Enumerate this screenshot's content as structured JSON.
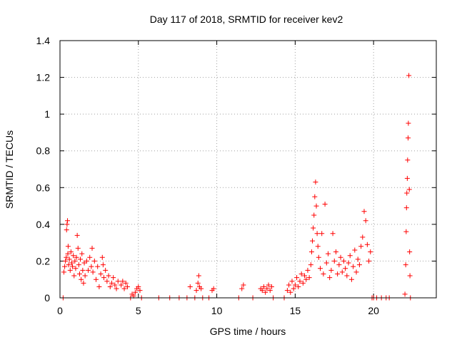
{
  "chart_data": {
    "type": "scatter",
    "title": "Day 117 of 2018, SRMTID for receiver kev2",
    "xlabel": "GPS time / hours",
    "ylabel": "SRMTID / TECUs",
    "xlim": [
      0,
      24
    ],
    "ylim": [
      0,
      1.4
    ],
    "xticks": [
      0,
      5,
      10,
      15,
      20
    ],
    "yticks": [
      0,
      0.2,
      0.4,
      0.6,
      0.8,
      1,
      1.2,
      1.4
    ],
    "xtick_labels": [
      "0",
      "5",
      "10",
      "15",
      "20"
    ],
    "ytick_labels": [
      "0",
      "0.2",
      "0.4",
      "0.6",
      "0.8",
      "1",
      "1.2",
      "1.4"
    ],
    "grid": true,
    "marker": "+",
    "color": "#ff0000",
    "series": [
      {
        "name": "SRMTID",
        "points": [
          [
            0.2,
            0.0
          ],
          [
            0.25,
            0.14
          ],
          [
            0.3,
            0.17
          ],
          [
            0.35,
            0.2
          ],
          [
            0.4,
            0.22
          ],
          [
            0.42,
            0.37
          ],
          [
            0.45,
            0.4
          ],
          [
            0.48,
            0.42
          ],
          [
            0.5,
            0.24
          ],
          [
            0.52,
            0.28
          ],
          [
            0.55,
            0.18
          ],
          [
            0.6,
            0.21
          ],
          [
            0.65,
            0.15
          ],
          [
            0.7,
            0.25
          ],
          [
            0.75,
            0.19
          ],
          [
            0.8,
            0.17
          ],
          [
            0.85,
            0.23
          ],
          [
            0.9,
            0.12
          ],
          [
            0.95,
            0.2
          ],
          [
            1.0,
            0.16
          ],
          [
            1.05,
            0.22
          ],
          [
            1.1,
            0.34
          ],
          [
            1.15,
            0.27
          ],
          [
            1.2,
            0.18
          ],
          [
            1.25,
            0.13
          ],
          [
            1.3,
            0.21
          ],
          [
            1.35,
            0.1
          ],
          [
            1.4,
            0.24
          ],
          [
            1.45,
            0.15
          ],
          [
            1.5,
            0.08
          ],
          [
            1.55,
            0.19
          ],
          [
            1.6,
            0.12
          ],
          [
            1.7,
            0.2
          ],
          [
            1.8,
            0.15
          ],
          [
            1.9,
            0.22
          ],
          [
            2.0,
            0.17
          ],
          [
            2.05,
            0.27
          ],
          [
            2.1,
            0.14
          ],
          [
            2.2,
            0.2
          ],
          [
            2.3,
            0.1
          ],
          [
            2.4,
            0.17
          ],
          [
            2.5,
            0.06
          ],
          [
            2.6,
            0.13
          ],
          [
            2.7,
            0.22
          ],
          [
            2.75,
            0.18
          ],
          [
            2.8,
            0.11
          ],
          [
            2.9,
            0.15
          ],
          [
            3.0,
            0.09
          ],
          [
            3.1,
            0.12
          ],
          [
            3.2,
            0.06
          ],
          [
            3.3,
            0.08
          ],
          [
            3.4,
            0.11
          ],
          [
            3.5,
            0.07
          ],
          [
            3.6,
            0.05
          ],
          [
            3.7,
            0.09
          ],
          [
            3.9,
            0.07
          ],
          [
            4.0,
            0.09
          ],
          [
            4.1,
            0.05
          ],
          [
            4.2,
            0.08
          ],
          [
            4.3,
            0.06
          ],
          [
            4.5,
            0.0
          ],
          [
            4.6,
            0.02
          ],
          [
            4.7,
            0.01
          ],
          [
            4.8,
            0.03
          ],
          [
            4.9,
            0.05
          ],
          [
            5.0,
            0.06
          ],
          [
            5.1,
            0.04
          ],
          [
            5.2,
            0.0
          ],
          [
            6.3,
            0.0
          ],
          [
            7.0,
            0.0
          ],
          [
            7.6,
            0.0
          ],
          [
            8.1,
            0.0
          ],
          [
            8.3,
            0.06
          ],
          [
            8.6,
            0.0
          ],
          [
            8.7,
            0.04
          ],
          [
            8.8,
            0.08
          ],
          [
            8.85,
            0.12
          ],
          [
            8.9,
            0.06
          ],
          [
            9.0,
            0.05
          ],
          [
            9.1,
            0.0
          ],
          [
            9.5,
            0.0
          ],
          [
            9.7,
            0.04
          ],
          [
            9.8,
            0.05
          ],
          [
            11.4,
            0.0
          ],
          [
            11.6,
            0.05
          ],
          [
            11.7,
            0.07
          ],
          [
            12.3,
            0.0
          ],
          [
            12.8,
            0.05
          ],
          [
            12.9,
            0.04
          ],
          [
            13.0,
            0.06
          ],
          [
            13.1,
            0.03
          ],
          [
            13.2,
            0.05
          ],
          [
            13.3,
            0.07
          ],
          [
            13.4,
            0.04
          ],
          [
            13.5,
            0.06
          ],
          [
            13.6,
            0.0
          ],
          [
            14.3,
            0.0
          ],
          [
            14.5,
            0.04
          ],
          [
            14.6,
            0.07
          ],
          [
            14.7,
            0.03
          ],
          [
            14.8,
            0.09
          ],
          [
            14.9,
            0.05
          ],
          [
            15.0,
            0.07
          ],
          [
            15.1,
            0.11
          ],
          [
            15.2,
            0.06
          ],
          [
            15.3,
            0.09
          ],
          [
            15.4,
            0.13
          ],
          [
            15.5,
            0.08
          ],
          [
            15.6,
            0.12
          ],
          [
            15.7,
            0.1
          ],
          [
            15.8,
            0.15
          ],
          [
            15.9,
            0.11
          ],
          [
            16.0,
            0.18
          ],
          [
            16.05,
            0.25
          ],
          [
            16.1,
            0.31
          ],
          [
            16.15,
            0.38
          ],
          [
            16.2,
            0.45
          ],
          [
            16.25,
            0.55
          ],
          [
            16.3,
            0.63
          ],
          [
            16.35,
            0.5
          ],
          [
            16.4,
            0.35
          ],
          [
            16.45,
            0.28
          ],
          [
            16.5,
            0.22
          ],
          [
            16.6,
            0.16
          ],
          [
            16.7,
            0.35
          ],
          [
            16.8,
            0.13
          ],
          [
            16.9,
            0.51
          ],
          [
            17.0,
            0.19
          ],
          [
            17.1,
            0.24
          ],
          [
            17.2,
            0.11
          ],
          [
            17.3,
            0.15
          ],
          [
            17.4,
            0.35
          ],
          [
            17.5,
            0.2
          ],
          [
            17.6,
            0.25
          ],
          [
            17.7,
            0.13
          ],
          [
            17.8,
            0.18
          ],
          [
            17.9,
            0.22
          ],
          [
            18.0,
            0.14
          ],
          [
            18.1,
            0.2
          ],
          [
            18.2,
            0.16
          ],
          [
            18.3,
            0.12
          ],
          [
            18.4,
            0.19
          ],
          [
            18.5,
            0.23
          ],
          [
            18.6,
            0.1
          ],
          [
            18.7,
            0.17
          ],
          [
            18.8,
            0.26
          ],
          [
            18.9,
            0.14
          ],
          [
            19.0,
            0.21
          ],
          [
            19.1,
            0.18
          ],
          [
            19.2,
            0.28
          ],
          [
            19.3,
            0.33
          ],
          [
            19.4,
            0.47
          ],
          [
            19.5,
            0.42
          ],
          [
            19.6,
            0.29
          ],
          [
            19.7,
            0.2
          ],
          [
            19.8,
            0.25
          ],
          [
            19.9,
            0.0
          ],
          [
            20.0,
            0.0
          ],
          [
            20.2,
            0.0
          ],
          [
            20.5,
            0.0
          ],
          [
            20.8,
            0.0
          ],
          [
            21.0,
            0.0
          ],
          [
            22.0,
            0.02
          ],
          [
            22.05,
            0.18
          ],
          [
            22.08,
            0.36
          ],
          [
            22.1,
            0.49
          ],
          [
            22.12,
            0.57
          ],
          [
            22.15,
            0.65
          ],
          [
            22.17,
            0.75
          ],
          [
            22.2,
            0.87
          ],
          [
            22.22,
            0.95
          ],
          [
            22.25,
            1.21
          ],
          [
            22.28,
            0.59
          ],
          [
            22.3,
            0.25
          ],
          [
            22.32,
            0.12
          ],
          [
            22.35,
            0.0
          ]
        ]
      }
    ]
  }
}
